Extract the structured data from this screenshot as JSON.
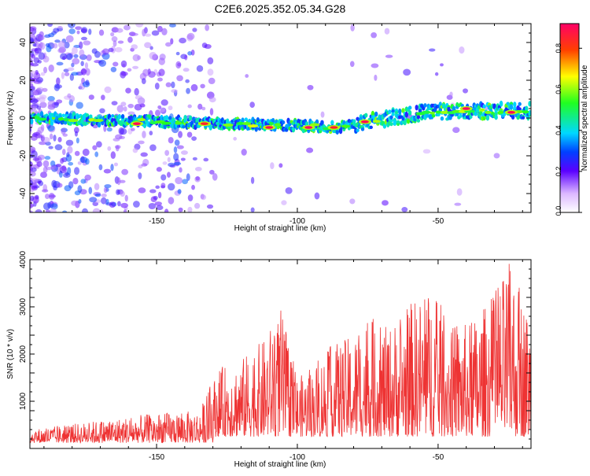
{
  "title": "C2E6.2025.352.05.34.G28",
  "chart_data": [
    {
      "type": "heatmap",
      "xlabel": "Height of straight line (km)",
      "ylabel": "Frequency (Hz)",
      "xlim": [
        -195,
        -17
      ],
      "ylim": [
        -50,
        50
      ],
      "xticks": [
        -150,
        -100,
        -50
      ],
      "yticks": [
        -40,
        -20,
        0,
        20,
        40
      ],
      "colorbar": {
        "label": "Normalized spectral amplitude",
        "range": [
          0,
          0.92
        ],
        "ticks": [
          0.0,
          0.2,
          0.4,
          0.6,
          0.8
        ]
      },
      "trace": {
        "description_points": [
          [
            -195,
            0
          ],
          [
            -100,
            -4
          ],
          [
            -85,
            -5
          ],
          [
            -75,
            -2
          ],
          [
            -55,
            3
          ],
          [
            -17,
            4
          ]
        ],
        "peaks": [
          {
            "x": -157,
            "y": -3,
            "value": 0.9
          },
          {
            "x": -133,
            "y": -3,
            "value": 0.85
          },
          {
            "x": -110,
            "y": -5,
            "value": 0.9
          },
          {
            "x": -96,
            "y": -5,
            "value": 0.92
          },
          {
            "x": -87,
            "y": -5,
            "value": 0.85
          },
          {
            "x": -76,
            "y": -2,
            "value": 0.9
          },
          {
            "x": -40,
            "y": 5,
            "value": 0.92
          },
          {
            "x": -24,
            "y": 3,
            "value": 0.9
          }
        ]
      }
    },
    {
      "type": "line",
      "xlabel": "Height of straight line (km)",
      "ylabel": "SNR (10 * v/v)",
      "xlim": [
        -195,
        -17
      ],
      "ylim": [
        0,
        4000
      ],
      "xticks": [
        -150,
        -100,
        -50
      ],
      "yticks": [
        1000,
        2000,
        3000,
        4000
      ],
      "color": "#ee3333",
      "envelope": {
        "x": [
          -195,
          -170,
          -150,
          -135,
          -128,
          -120,
          -112,
          -106,
          -100,
          -95,
          -88,
          -80,
          -75,
          -68,
          -60,
          -52,
          -45,
          -38,
          -30,
          -24,
          -17
        ],
        "y": [
          400,
          600,
          750,
          800,
          1700,
          1900,
          2300,
          3000,
          1500,
          1700,
          2200,
          2400,
          2850,
          2550,
          3100,
          3400,
          2600,
          2700,
          3300,
          4000,
          2700
        ]
      }
    }
  ]
}
